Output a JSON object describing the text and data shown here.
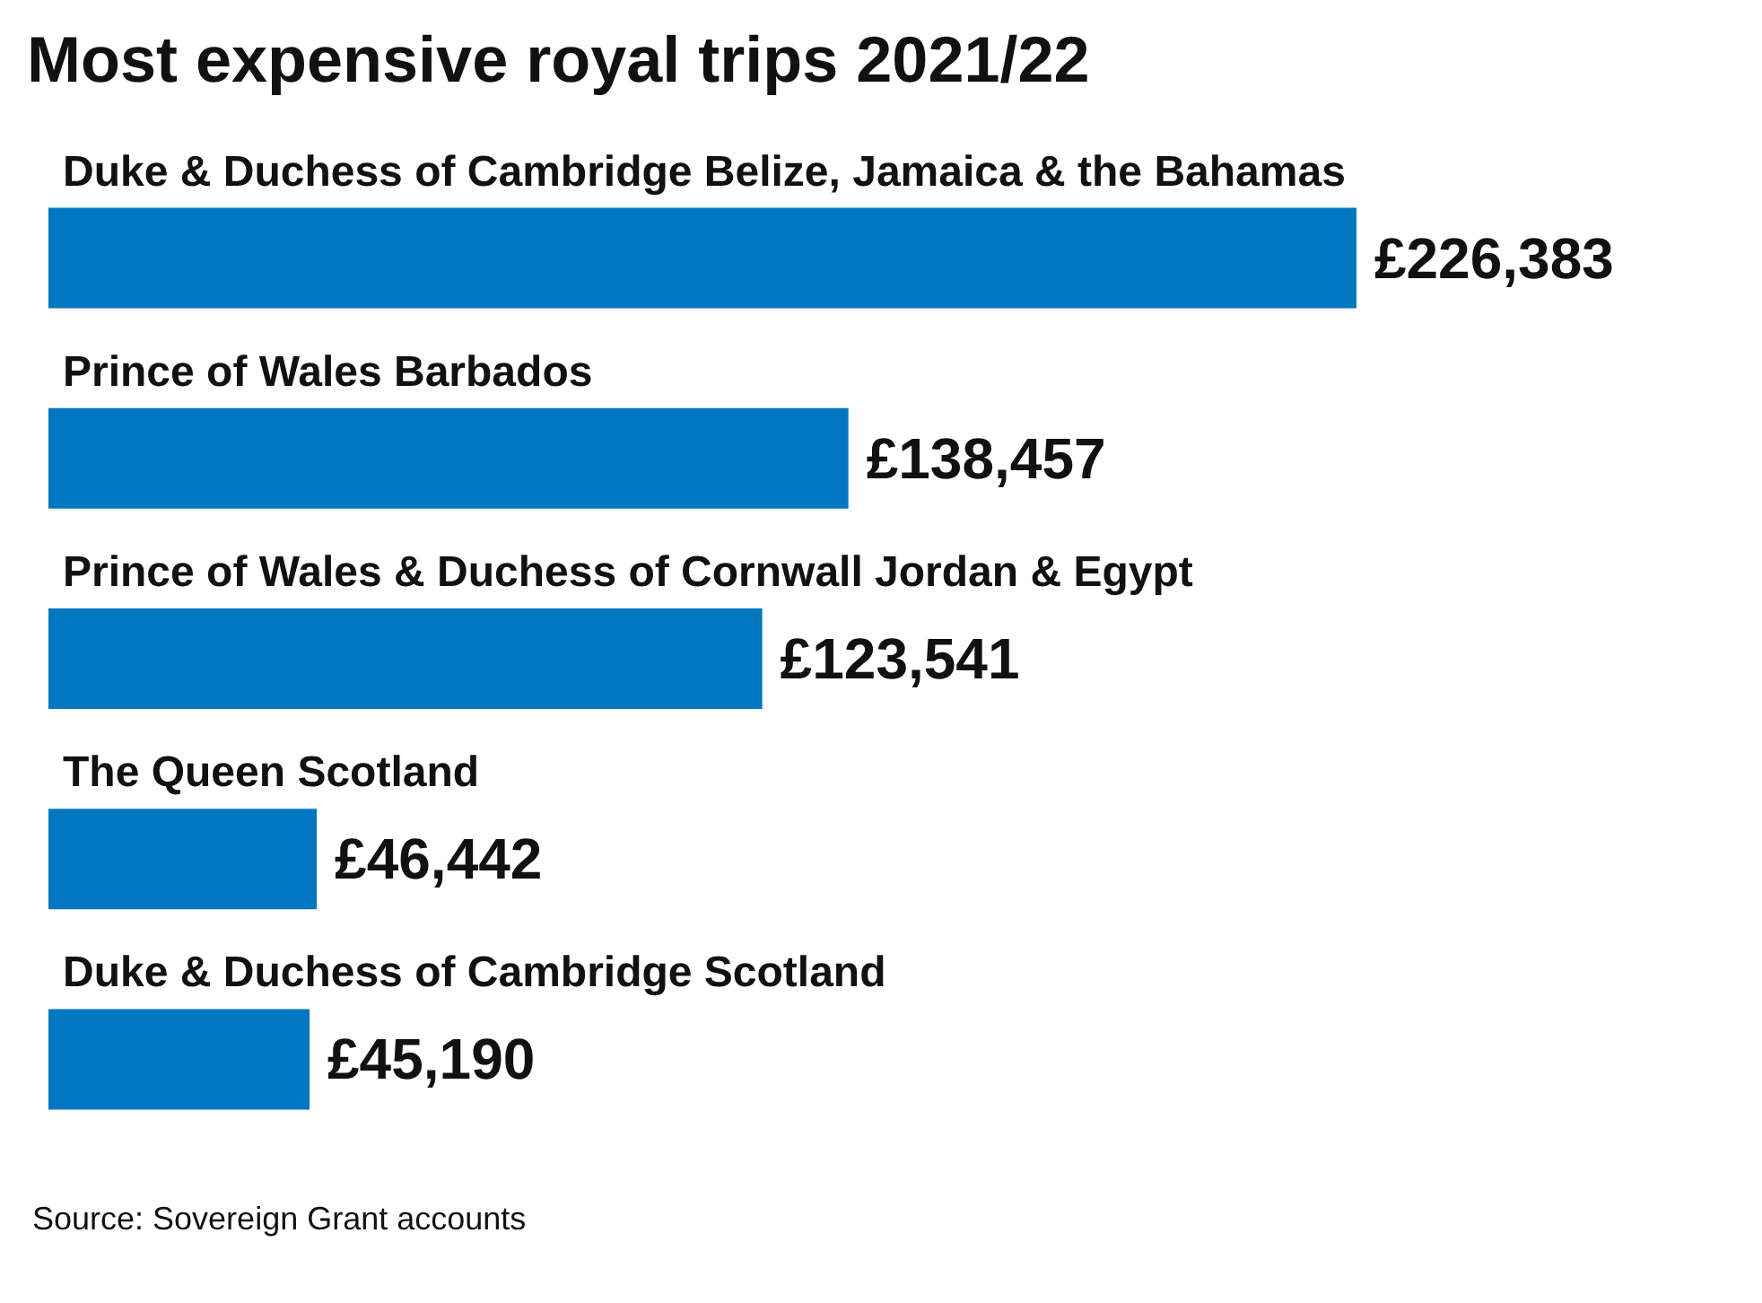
{
  "chart_data": {
    "type": "bar",
    "orientation": "horizontal",
    "title": "Most expensive royal trips 2021/22",
    "categories": [
      "Duke & Duchess of Cambridge Belize, Jamaica & the Bahamas",
      "Prince of Wales Barbados",
      "Prince of Wales & Duchess of Cornwall Jordan & Egypt",
      "The Queen Scotland",
      "Duke & Duchess of Cambridge Scotland"
    ],
    "values": [
      226383,
      138457,
      123541,
      46442,
      45190
    ],
    "value_labels": [
      "£226,383",
      "£138,457",
      "£123,541",
      "£46,442",
      "£45,190"
    ],
    "color": "#0077c0",
    "annotations": [
      "Source: Sovereign Grant accounts"
    ]
  }
}
